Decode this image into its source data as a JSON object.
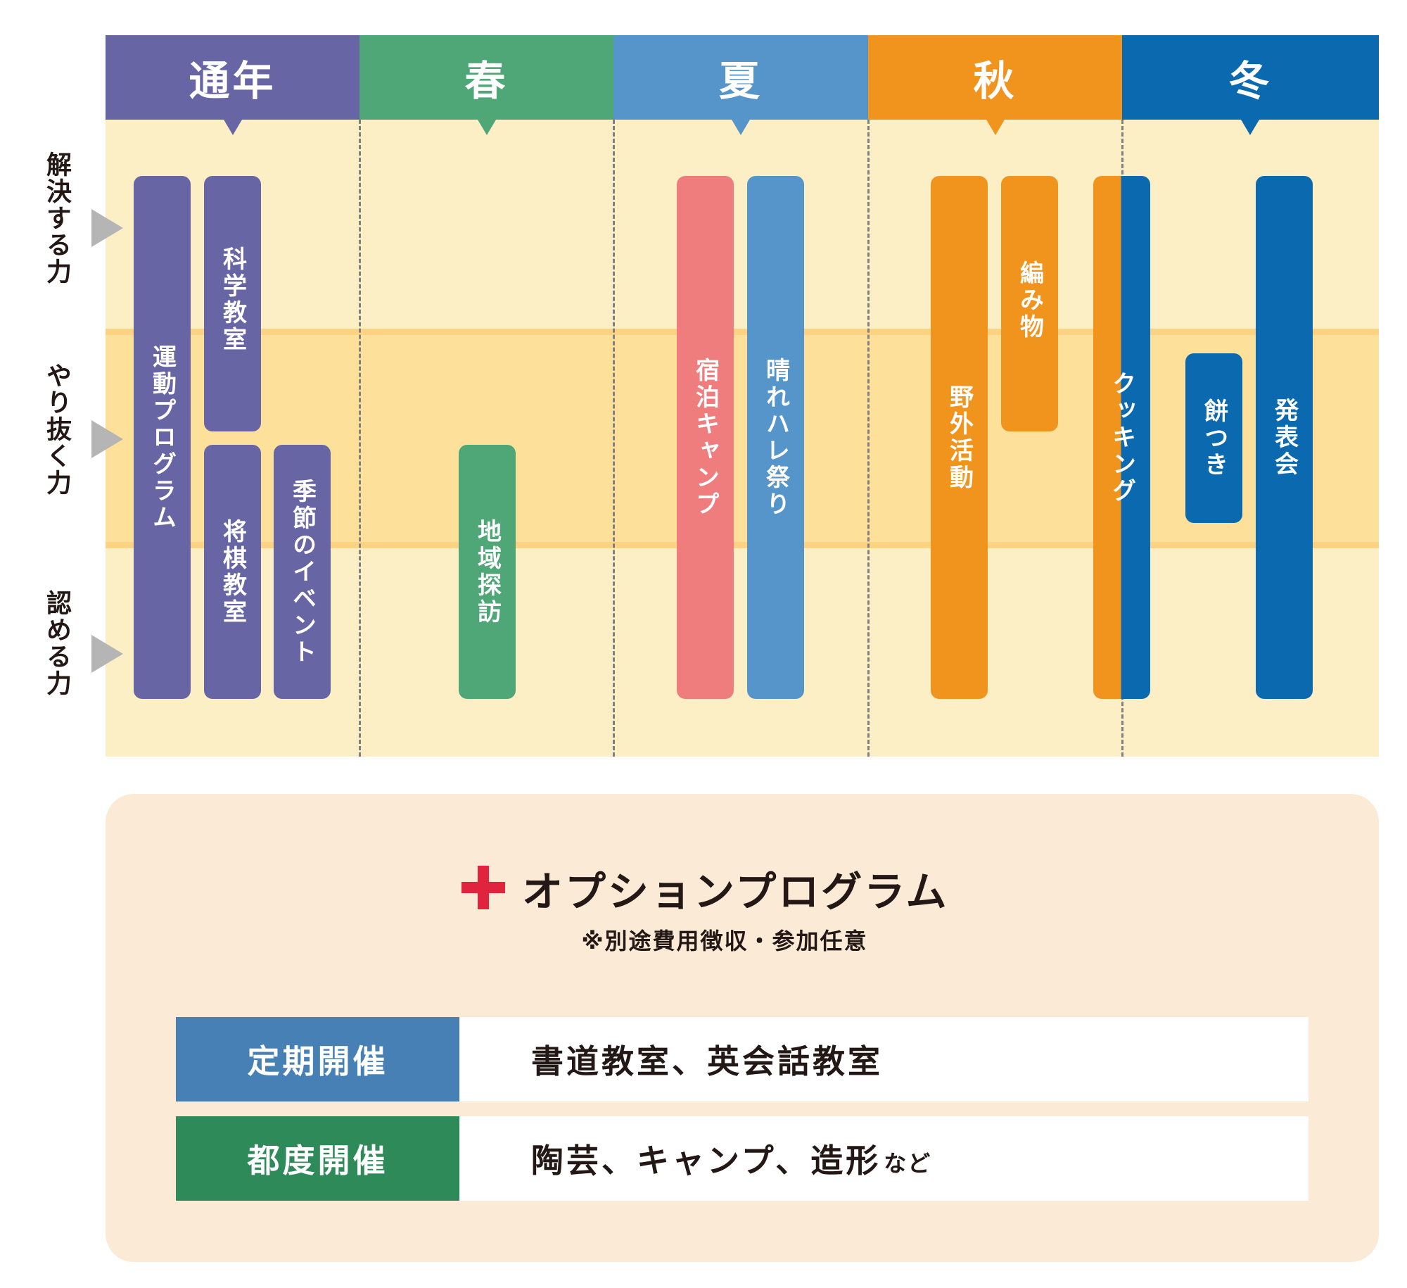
{
  "colors": {
    "all_year": "#6865a5",
    "spring": "#4fa676",
    "summer": "#5595c9",
    "autumn": "#f1941d",
    "winter": "#0b69af",
    "camp": "#ef7d7e",
    "background": "#fdefc5",
    "band": "#fde19a",
    "option_panel": "#faead6",
    "regular": "#4780b5",
    "irregular": "#2e8b59",
    "plus": "#e0243e"
  },
  "seasons": [
    {
      "label": "通年"
    },
    {
      "label": "春"
    },
    {
      "label": "夏"
    },
    {
      "label": "秋"
    },
    {
      "label": "冬"
    }
  ],
  "rows": [
    {
      "label": "解決する力"
    },
    {
      "label": "やり抜く力"
    },
    {
      "label": "認める力"
    }
  ],
  "programs": {
    "sports": "運動プログラム",
    "science": "科学教室",
    "shogi": "将棋教室",
    "seasonal_events": "季節のイベント",
    "local_exploration": "地域探訪",
    "overnight_camp": "宿泊キャンプ",
    "harehare_festival": "晴れハレ祭り",
    "outdoor_activities": "野外活動",
    "knitting": "編み物",
    "cooking": "クッキング",
    "mochi_pounding": "餅つき",
    "recital": "発表会"
  },
  "option": {
    "title": "オプションプログラム",
    "note": "※別途費用徴収・参加任意",
    "rows": [
      {
        "label": "定期開催",
        "text": "書道教室、英会話教室",
        "suffix": ""
      },
      {
        "label": "都度開催",
        "text": "陶芸、キャンプ、造形",
        "suffix": "など"
      }
    ]
  }
}
